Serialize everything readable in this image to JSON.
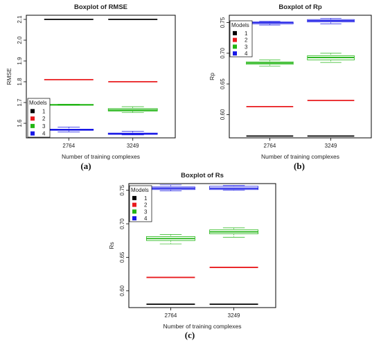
{
  "chart_data": [
    {
      "id": "a",
      "type": "boxplot",
      "title": "Boxplot of RMSE",
      "xlabel": "Number of training complexes",
      "ylabel": "RMSE",
      "categories": [
        "2764",
        "3249"
      ],
      "ylim": [
        1.53,
        2.12
      ],
      "yticks": [
        1.6,
        1.7,
        1.8,
        1.9,
        2.0,
        2.1
      ],
      "ytick_labels": [
        "1.6",
        "1.7",
        "1.8",
        "1.9",
        "2.0",
        "2.1"
      ],
      "legend": {
        "title": "Models",
        "position": "bottom-left"
      },
      "caption": "(a)",
      "series": [
        {
          "name": "1",
          "color": "#000000",
          "stats": [
            [
              2.1,
              2.1,
              2.1,
              2.1,
              2.1
            ],
            [
              2.1,
              2.1,
              2.1,
              2.1,
              2.1
            ]
          ]
        },
        {
          "name": "2",
          "color": "#e8191c",
          "stats": [
            [
              1.81,
              1.81,
              1.81,
              1.81,
              1.81
            ],
            [
              1.8,
              1.8,
              1.8,
              1.8,
              1.8
            ]
          ]
        },
        {
          "name": "3",
          "color": "#22b514",
          "stats": [
            [
              1.686,
              1.687,
              1.689,
              1.691,
              1.692
            ],
            [
              1.651,
              1.659,
              1.664,
              1.671,
              1.68
            ]
          ]
        },
        {
          "name": "4",
          "color": "#1919e6",
          "stats": [
            [
              1.558,
              1.566,
              1.569,
              1.572,
              1.582
            ],
            [
              1.544,
              1.547,
              1.549,
              1.553,
              1.562
            ]
          ]
        }
      ]
    },
    {
      "id": "b",
      "type": "boxplot",
      "title": "Boxplot of Rp",
      "xlabel": "Number of training complexes",
      "ylabel": "Rp",
      "categories": [
        "2764",
        "3249"
      ],
      "ylim": [
        0.562,
        0.762
      ],
      "yticks": [
        0.6,
        0.65,
        0.7,
        0.75
      ],
      "ytick_labels": [
        "0.60",
        "0.65",
        "0.70",
        "0.75"
      ],
      "legend": {
        "title": "Models",
        "position": "top-left"
      },
      "caption": "(b)",
      "series": [
        {
          "name": "1",
          "color": "#000000",
          "stats": [
            [
              0.565,
              0.565,
              0.565,
              0.565,
              0.565
            ],
            [
              0.565,
              0.565,
              0.565,
              0.565,
              0.565
            ]
          ]
        },
        {
          "name": "2",
          "color": "#e8191c",
          "stats": [
            [
              0.613,
              0.613,
              0.613,
              0.613,
              0.613
            ],
            [
              0.623,
              0.623,
              0.623,
              0.623,
              0.623
            ]
          ]
        },
        {
          "name": "3",
          "color": "#22b514",
          "stats": [
            [
              0.679,
              0.682,
              0.684,
              0.686,
              0.689
            ],
            [
              0.685,
              0.689,
              0.693,
              0.696,
              0.7
            ]
          ]
        },
        {
          "name": "4",
          "color": "#1919e6",
          "stats": [
            [
              0.746,
              0.748,
              0.75,
              0.751,
              0.752
            ],
            [
              0.748,
              0.751,
              0.753,
              0.755,
              0.757
            ]
          ]
        }
      ]
    },
    {
      "id": "c",
      "type": "boxplot",
      "title": "Boxplot of Rs",
      "xlabel": "Number of training complexes",
      "ylabel": "Rs",
      "categories": [
        "2764",
        "3249"
      ],
      "ylim": [
        0.575,
        0.76
      ],
      "yticks": [
        0.6,
        0.65,
        0.7,
        0.75
      ],
      "ytick_labels": [
        "0.60",
        "0.65",
        "0.70",
        "0.75"
      ],
      "legend": {
        "title": "Models",
        "position": "top-left"
      },
      "caption": "(c)",
      "series": [
        {
          "name": "1",
          "color": "#000000",
          "stats": [
            [
              0.58,
              0.58,
              0.58,
              0.58,
              0.58
            ],
            [
              0.58,
              0.58,
              0.58,
              0.58,
              0.58
            ]
          ]
        },
        {
          "name": "2",
          "color": "#e8191c",
          "stats": [
            [
              0.62,
              0.62,
              0.62,
              0.62,
              0.62
            ],
            [
              0.635,
              0.635,
              0.635,
              0.635,
              0.635
            ]
          ]
        },
        {
          "name": "3",
          "color": "#22b514",
          "stats": [
            [
              0.67,
              0.675,
              0.678,
              0.681,
              0.684
            ],
            [
              0.68,
              0.685,
              0.688,
              0.691,
              0.694
            ]
          ]
        },
        {
          "name": "4",
          "color": "#1919e6",
          "stats": [
            [
              0.749,
              0.751,
              0.753,
              0.755,
              0.758
            ],
            [
              0.75,
              0.751,
              0.753,
              0.756,
              0.757
            ]
          ]
        }
      ]
    }
  ]
}
